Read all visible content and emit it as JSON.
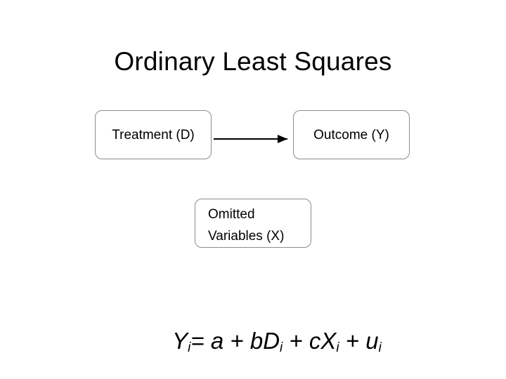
{
  "slide": {
    "title": "Ordinary Least Squares"
  },
  "diagram": {
    "nodes": {
      "treatment": "Treatment (D)",
      "outcome": "Outcome (Y)",
      "omitted": "Omitted\nVariables (X)"
    },
    "edges": [
      {
        "from": "treatment",
        "to": "outcome"
      }
    ]
  },
  "equation": {
    "y": "Y",
    "y_sub": "i",
    "eq": "= ",
    "a": "a",
    "plus1": " + ",
    "b": "b",
    "d": "D",
    "d_sub": "i",
    "plus2": " + ",
    "c": "c",
    "x": "X",
    "x_sub": "i",
    "plus3": " + ",
    "u": "u",
    "u_sub": "i"
  },
  "colors": {
    "node_border": "#8c8c8c",
    "arrow": "#000000",
    "text": "#000000",
    "background": "#ffffff"
  }
}
